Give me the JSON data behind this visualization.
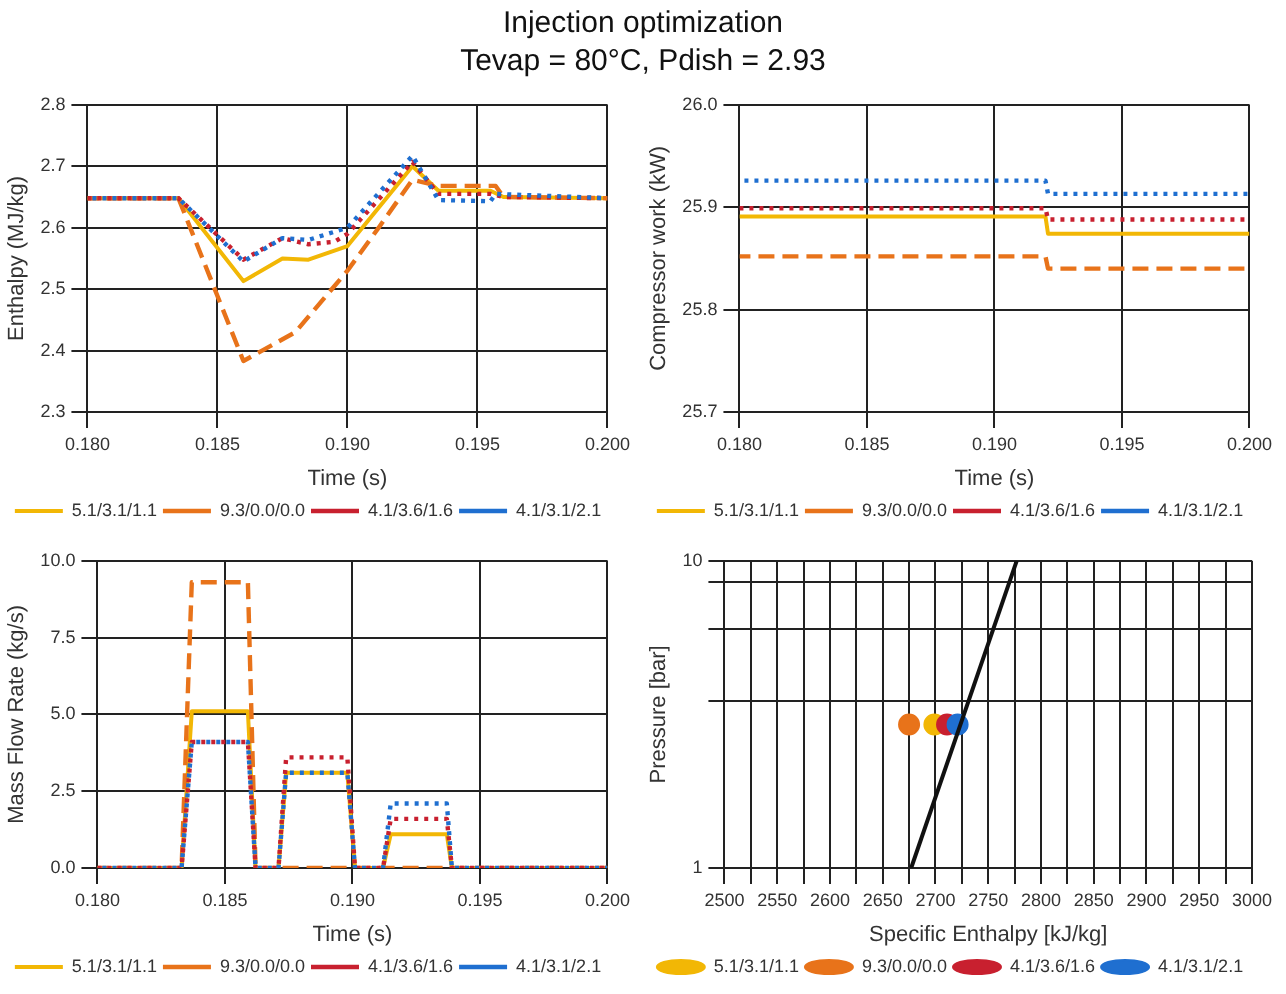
{
  "chart_data": [
    {
      "type": "line",
      "title": "Injection optimization",
      "subtitle": "Tevap = 80°C, Pdish = 2.93",
      "xlabel": "Time (s)",
      "ylabel": "Enthalpy (MJ/kg)",
      "xlim": [
        0.18,
        0.2
      ],
      "xticks": [
        {
          "value": 0.18,
          "label": "0.180"
        },
        {
          "value": 0.185,
          "label": "0.185"
        },
        {
          "value": 0.19,
          "label": "0.190"
        },
        {
          "value": 0.195,
          "label": "0.195"
        },
        {
          "value": 0.2,
          "label": "0.200"
        }
      ],
      "ylim": [
        2.3,
        2.8
      ],
      "yticks": [
        2.3,
        2.4,
        2.5,
        2.6,
        2.7,
        2.8
      ],
      "grid": true,
      "legend": "bottom",
      "series": [
        {
          "name": "5.1/3.1/1.1",
          "color": "#f2b705",
          "line_style": "solid",
          "x": [
            0.18,
            0.1835,
            0.186,
            0.1875,
            0.1885,
            0.19,
            0.1925,
            0.1935,
            0.1955,
            0.196,
            0.2
          ],
          "values": [
            2.648,
            2.648,
            2.513,
            2.55,
            2.548,
            2.57,
            2.7,
            2.66,
            2.66,
            2.65,
            2.648
          ]
        },
        {
          "name": "9.3/0.0/0.0",
          "color": "#e8731a",
          "line_style": "dashed",
          "x": [
            0.18,
            0.1835,
            0.186,
            0.188,
            0.19,
            0.1912,
            0.1925,
            0.1935,
            0.1957,
            0.196,
            0.2
          ],
          "values": [
            2.648,
            2.648,
            2.383,
            2.43,
            2.53,
            2.6,
            2.678,
            2.668,
            2.668,
            2.65,
            2.648
          ]
        },
        {
          "name": "4.1/3.6/1.6",
          "color": "#c8202f",
          "line_style": "dotted",
          "x": [
            0.18,
            0.1835,
            0.186,
            0.1875,
            0.1885,
            0.1895,
            0.19,
            0.1925,
            0.1935,
            0.1955,
            0.196,
            0.2
          ],
          "values": [
            2.648,
            2.648,
            2.548,
            2.583,
            2.573,
            2.577,
            2.59,
            2.707,
            2.655,
            2.655,
            2.65,
            2.648
          ]
        },
        {
          "name": "4.1/3.1/2.1",
          "color": "#1f6fd0",
          "line_style": "dotted",
          "x": [
            0.18,
            0.1835,
            0.186,
            0.1875,
            0.1885,
            0.19,
            0.1925,
            0.1935,
            0.1955,
            0.1957,
            0.2
          ],
          "values": [
            2.648,
            2.648,
            2.545,
            2.583,
            2.58,
            2.6,
            2.717,
            2.645,
            2.643,
            2.655,
            2.648
          ]
        }
      ]
    },
    {
      "type": "line",
      "xlabel": "Time (s)",
      "ylabel": "Compressor work (kW)",
      "xlim": [
        0.18,
        0.2
      ],
      "xticks": [
        {
          "value": 0.18,
          "label": "0.180"
        },
        {
          "value": 0.185,
          "label": "0.185"
        },
        {
          "value": 0.19,
          "label": "0.190"
        },
        {
          "value": 0.195,
          "label": "0.195"
        },
        {
          "value": 0.2,
          "label": "0.200"
        }
      ],
      "ylim": [
        25.7,
        26
      ],
      "yticks": [
        25.7,
        25.8,
        25.9,
        {
          "value": 26,
          "label": "26.0"
        }
      ],
      "grid": true,
      "legend": "bottom",
      "series": [
        {
          "name": "5.1/3.1/1.1",
          "color": "#f2b705",
          "line_style": "solid",
          "x": [
            0.18,
            0.192,
            0.1921,
            0.2
          ],
          "values": [
            25.891,
            25.891,
            25.874,
            25.874
          ]
        },
        {
          "name": "9.3/0.0/0.0",
          "color": "#e8731a",
          "line_style": "dashed",
          "x": [
            0.18,
            0.192,
            0.1921,
            0.2
          ],
          "values": [
            25.852,
            25.852,
            25.84,
            25.84
          ]
        },
        {
          "name": "4.1/3.6/1.6",
          "color": "#c8202f",
          "line_style": "dotted",
          "x": [
            0.18,
            0.192,
            0.1921,
            0.2
          ],
          "values": [
            25.899,
            25.899,
            25.888,
            25.888
          ]
        },
        {
          "name": "4.1/3.1/2.1",
          "color": "#1f6fd0",
          "line_style": "dotted",
          "x": [
            0.18,
            0.192,
            0.1921,
            0.2
          ],
          "values": [
            25.926,
            25.926,
            25.913,
            25.913
          ]
        }
      ]
    },
    {
      "type": "line",
      "xlabel": "Time (s)",
      "ylabel": "Mass Flow Rate (kg/s)",
      "xlim": [
        0.18,
        0.2
      ],
      "xticks": [
        {
          "value": 0.18,
          "label": "0.180"
        },
        {
          "value": 0.185,
          "label": "0.185"
        },
        {
          "value": 0.19,
          "label": "0.190"
        },
        {
          "value": 0.195,
          "label": "0.195"
        },
        {
          "value": 0.2,
          "label": "0.200"
        }
      ],
      "ylim": [
        0,
        10
      ],
      "yticks": [
        {
          "value": 0,
          "label": "0.0"
        },
        2.5,
        {
          "value": 5,
          "label": "5.0"
        },
        7.5,
        {
          "value": 10,
          "label": "10.0"
        }
      ],
      "grid": true,
      "legend": "bottom",
      "series": [
        {
          "name": "5.1/3.1/1.1",
          "color": "#f2b705",
          "line_style": "solid",
          "x": [
            0.18,
            0.1833,
            0.1837,
            0.1859,
            0.1862,
            0.1871,
            0.1874,
            0.1898,
            0.1901,
            0.1912,
            0.1915,
            0.1937,
            0.1939,
            0.2
          ],
          "values": [
            0,
            0,
            5.1,
            5.1,
            0,
            0,
            3.1,
            3.1,
            0,
            0,
            1.1,
            1.1,
            0,
            0
          ]
        },
        {
          "name": "9.3/0.0/0.0",
          "color": "#e8731a",
          "line_style": "dashed",
          "x": [
            0.18,
            0.1833,
            0.1837,
            0.1859,
            0.1862,
            0.2
          ],
          "values": [
            0,
            0,
            9.3,
            9.3,
            0,
            0
          ]
        },
        {
          "name": "4.1/3.6/1.6",
          "color": "#c8202f",
          "line_style": "dotted",
          "x": [
            0.18,
            0.1833,
            0.1837,
            0.1859,
            0.1862,
            0.1871,
            0.1874,
            0.1898,
            0.1901,
            0.1912,
            0.1915,
            0.1937,
            0.1939,
            0.2
          ],
          "values": [
            0,
            0,
            4.1,
            4.1,
            0,
            0,
            3.6,
            3.6,
            0,
            0,
            1.6,
            1.6,
            0,
            0
          ]
        },
        {
          "name": "4.1/3.1/2.1",
          "color": "#1f6fd0",
          "line_style": "dotted",
          "x": [
            0.18,
            0.1833,
            0.1837,
            0.1859,
            0.1862,
            0.1871,
            0.1874,
            0.1898,
            0.1901,
            0.1912,
            0.1915,
            0.1937,
            0.1939,
            0.2
          ],
          "values": [
            0,
            0,
            4.1,
            4.1,
            0,
            0,
            3.1,
            3.1,
            0,
            0,
            2.1,
            2.1,
            0,
            0
          ]
        }
      ]
    },
    {
      "type": "scatter",
      "xlabel": "Specific Enthalpy [kJ/kg]",
      "ylabel": "Pressure [bar]",
      "log": "y",
      "xlim": [
        2500,
        3000
      ],
      "xticks": [
        2500,
        {
          "value": 2525,
          "label": null
        },
        2550,
        {
          "value": 2575,
          "label": null
        },
        2600,
        {
          "value": 2625,
          "label": null
        },
        2650,
        {
          "value": 2675,
          "label": null
        },
        2700,
        {
          "value": 2725,
          "label": null
        },
        2750,
        {
          "value": 2775,
          "label": null
        },
        2800,
        {
          "value": 2825,
          "label": null
        },
        2850,
        {
          "value": 2875,
          "label": null
        },
        2900,
        {
          "value": 2925,
          "label": null
        },
        2950,
        {
          "value": 2975,
          "label": null
        },
        3000
      ],
      "ylim": [
        1,
        10
      ],
      "yticks": [
        1,
        {
          "value": 3.5,
          "label": null
        },
        {
          "value": 6,
          "label": null
        },
        {
          "value": 8.5,
          "label": null
        },
        10
      ],
      "grid": true,
      "legend": "bottom",
      "marker": "circle",
      "series": [
        {
          "name": "5.1/3.1/1.1",
          "color": "#f2b705",
          "x": [
            2699
          ],
          "values": [
            2.93
          ]
        },
        {
          "name": "9.3/0.0/0.0",
          "color": "#e8731a",
          "x": [
            2675
          ],
          "values": [
            2.93
          ]
        },
        {
          "name": "4.1/3.6/1.6",
          "color": "#c8202f",
          "x": [
            2711
          ],
          "values": [
            2.93
          ]
        },
        {
          "name": "4.1/3.1/2.1",
          "color": "#1f6fd0",
          "x": [
            2721
          ],
          "values": [
            2.93
          ]
        },
        {
          "type": "line",
          "color": "#111111",
          "marker": "none",
          "line_style": "solid",
          "x": [
            2677,
            2777
          ],
          "values": [
            1,
            10
          ]
        }
      ]
    }
  ]
}
